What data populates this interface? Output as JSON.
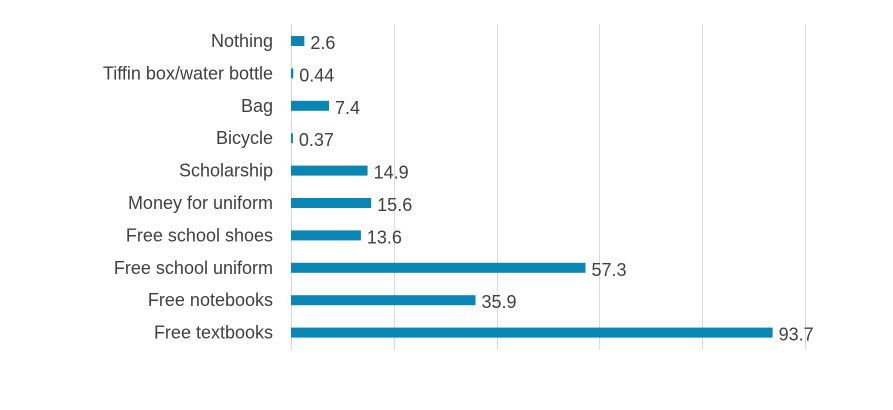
{
  "chart_data": {
    "type": "bar",
    "orientation": "horizontal",
    "categories": [
      "Nothing",
      "Tiffin box/water bottle",
      "Bag",
      "Bicycle",
      "Scholarship",
      "Money for uniform",
      "Free school shoes",
      "Free school uniform",
      "Free notebooks",
      "Free textbooks"
    ],
    "values": [
      2.6,
      0.44,
      7.4,
      0.37,
      14.9,
      15.6,
      13.6,
      57.3,
      35.9,
      93.7
    ],
    "value_labels": [
      "2.6",
      "0.44",
      "7.4",
      "0.37",
      "14.9",
      "15.6",
      "13.6",
      "57.3",
      "35.9",
      "93.7"
    ],
    "xlim": [
      0,
      100
    ],
    "grid": true,
    "bar_color": "#0a86b5",
    "title": "",
    "xlabel": "",
    "ylabel": ""
  }
}
